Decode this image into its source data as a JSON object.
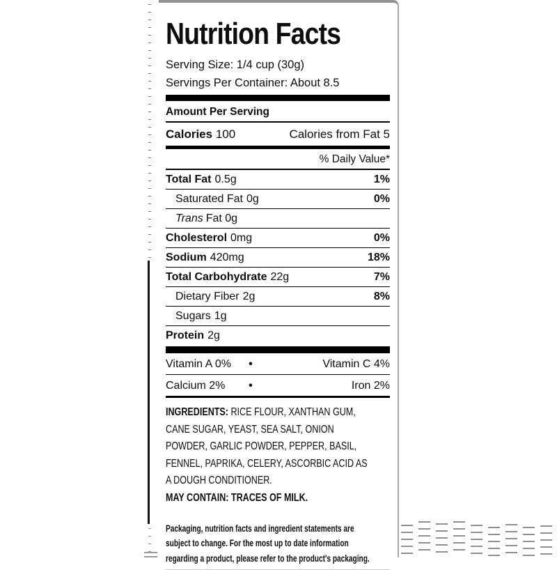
{
  "nutrition_label": {
    "title": "Nutrition Facts",
    "serving_size": "Serving Size: 1/4 cup (30g)",
    "servings_per_container": "Servings Per Container: About 8.5",
    "amount_per_serving": "Amount Per Serving",
    "calories": {
      "label": "Calories",
      "value": "100",
      "from_fat": "Calories from Fat 5"
    },
    "daily_value_header": "% Daily Value*",
    "nutrients": [
      {
        "name": "Total Fat",
        "amount": "0.5g",
        "dv": "1%"
      },
      {
        "name": "Saturated Fat",
        "amount": "0g",
        "dv": "0%"
      },
      {
        "name": "Trans",
        "amount": "Fat 0g",
        "dv": ""
      },
      {
        "name": "Cholesterol",
        "amount": "0mg",
        "dv": "0%"
      },
      {
        "name": "Sodium",
        "amount": "420mg",
        "dv": "18%"
      },
      {
        "name": "Total Carbohydrate",
        "amount": "22g",
        "dv": "7%"
      },
      {
        "name": "Dietary Fiber",
        "amount": "2g",
        "dv": "8%"
      },
      {
        "name": "Sugars",
        "amount": "1g",
        "dv": ""
      },
      {
        "name": "Protein",
        "amount": "2g",
        "dv": ""
      }
    ],
    "micronutrients": {
      "bullet": "•",
      "row1_left": "Vitamin A 0%",
      "row1_right": "Vitamin C 4%",
      "row2_left": "Calcium 2%",
      "row2_right": "Iron 2%"
    },
    "ingredients": {
      "label": "INGREDIENTS:",
      "first_line_rest": " RICE FLOUR, XANTHAN GUM,",
      "lines": [
        "CANE SUGAR, YEAST, SEA SALT, ONION",
        "POWDER, GARLIC POWDER, PEPPER, BASIL,",
        "FENNEL, PAPRIKA, CELERY, ASCORBIC ACID AS",
        "A DOUGH CONDITIONER."
      ]
    },
    "may_contain": "MAY CONTAIN: TRACES OF MILK.",
    "disclaimer_lines": [
      "Packaging, nutrition facts and ingredient statements are",
      "subject to change. For the most up to date information",
      "regarding a product, please refer to the product's packaging."
    ],
    "colors": {
      "text": "#0d0d0d",
      "rule": "#000000",
      "card_border": "#949494",
      "faint_rule": "#cccccc",
      "artifact_gray": "#8f8f8f"
    }
  }
}
